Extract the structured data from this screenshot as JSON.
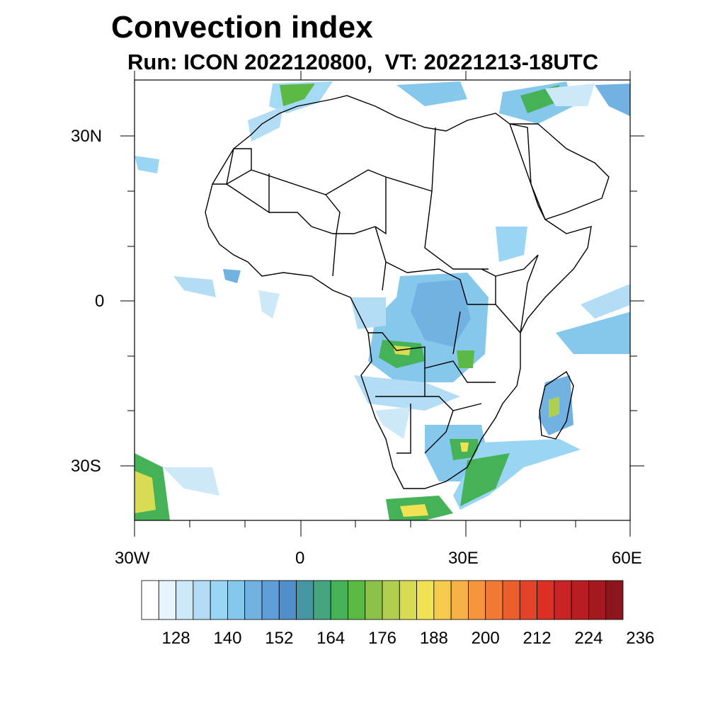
{
  "title": "Convection index",
  "subtitle": "Run: ICON 2022120800,  VT: 20221213-18UTC",
  "map": {
    "lon_ticks": [
      "30W",
      "0",
      "30E",
      "60E"
    ],
    "lat_ticks": [
      "30N",
      "0",
      "30S"
    ],
    "lon_range": [
      -30,
      60
    ],
    "lat_range": [
      -40,
      40
    ],
    "coastline_color": "#000000"
  },
  "colorbar": {
    "labels": [
      "128",
      "140",
      "152",
      "164",
      "176",
      "188",
      "200",
      "212",
      "224",
      "236"
    ],
    "colors": [
      "#ffffff",
      "#e6f4fc",
      "#cde8f8",
      "#b3ddf5",
      "#9ad6f4",
      "#86c7ec",
      "#72b2e2",
      "#5e9ed8",
      "#4f8ec9",
      "#4597a3",
      "#43a67e",
      "#45b258",
      "#5db945",
      "#8cc24a",
      "#b0cf4f",
      "#d7dc53",
      "#f0e253",
      "#f7cb4e",
      "#f6b146",
      "#f5953c",
      "#f07a33",
      "#ea5f2c",
      "#e34328",
      "#dc2f26",
      "#c92324",
      "#b81d22",
      "#a3191f",
      "#8b161c"
    ]
  }
}
